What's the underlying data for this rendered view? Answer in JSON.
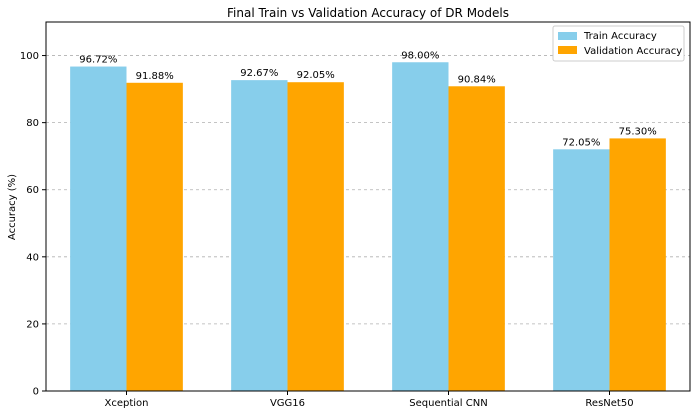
{
  "chart_data": {
    "type": "bar",
    "title": "Final Train vs Validation Accuracy of DR Models",
    "xlabel": "",
    "ylabel": "Accuracy (%)",
    "ylim": [
      0,
      110
    ],
    "yticks": [
      0,
      20,
      40,
      60,
      80,
      100
    ],
    "grid": "y-dashed",
    "legend_position": "top-right",
    "categories": [
      "Xception",
      "VGG16",
      "Sequential CNN",
      "ResNet50"
    ],
    "series": [
      {
        "name": "Train Accuracy",
        "color": "#87ceeb",
        "values": [
          96.72,
          92.67,
          98.0,
          72.05
        ],
        "labels": [
          "96.72%",
          "92.67%",
          "98.00%",
          "72.05%"
        ]
      },
      {
        "name": "Validation Accuracy",
        "color": "#ffa500",
        "values": [
          91.88,
          92.05,
          90.84,
          75.3
        ],
        "labels": [
          "91.88%",
          "92.05%",
          "90.84%",
          "75.30%"
        ]
      }
    ]
  }
}
